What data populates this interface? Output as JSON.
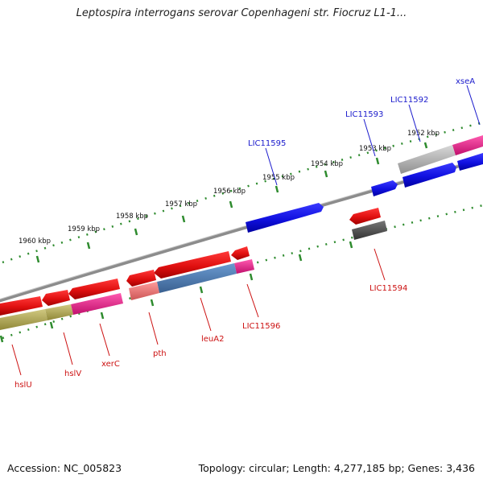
{
  "title": "Leptospira interrogans serovar Copenhageni str. Fiocruz L1-1...",
  "footer": {
    "accession": "Accession: NC_005823",
    "summary": "Topology: circular; Length: 4,277,185 bp; Genes: 3,436"
  },
  "scale_labels": [
    "1952 kbp",
    "1953 kbp",
    "1954 kbp",
    "1955 kbp",
    "1956 kbp",
    "1957 kbp",
    "1958 kbp",
    "1959 kbp",
    "1960 kbp"
  ],
  "gene_labels_top": [
    {
      "name": "xseA",
      "color": "#1a1acc"
    },
    {
      "name": "LIC11592",
      "color": "#1a1acc"
    },
    {
      "name": "LIC11593",
      "color": "#1a1acc"
    },
    {
      "name": "LIC11595",
      "color": "#1a1acc"
    }
  ],
  "gene_labels_bottom": [
    {
      "name": "LIC11594",
      "color": "#cc1111"
    },
    {
      "name": "LIC11596",
      "color": "#cc1111"
    },
    {
      "name": "leuA2",
      "color": "#cc1111"
    },
    {
      "name": "pth",
      "color": "#cc1111"
    },
    {
      "name": "xerC",
      "color": "#cc1111"
    },
    {
      "name": "hslV",
      "color": "#cc1111"
    },
    {
      "name": "hslU",
      "color": "#cc1111"
    }
  ],
  "colors": {
    "backbone": "#8c8c8c",
    "tick": "#2e8b2e",
    "forward_gene": "#1414e0",
    "reverse_gene": "#e01414",
    "pink_gene": "#e8268c",
    "olive_gene": "#b8b060",
    "steel_gene": "#4f7fb8",
    "gray_gene": "#b4b4b4",
    "dark_gray_gene": "#555555",
    "salmon_gene": "#ee7777"
  }
}
